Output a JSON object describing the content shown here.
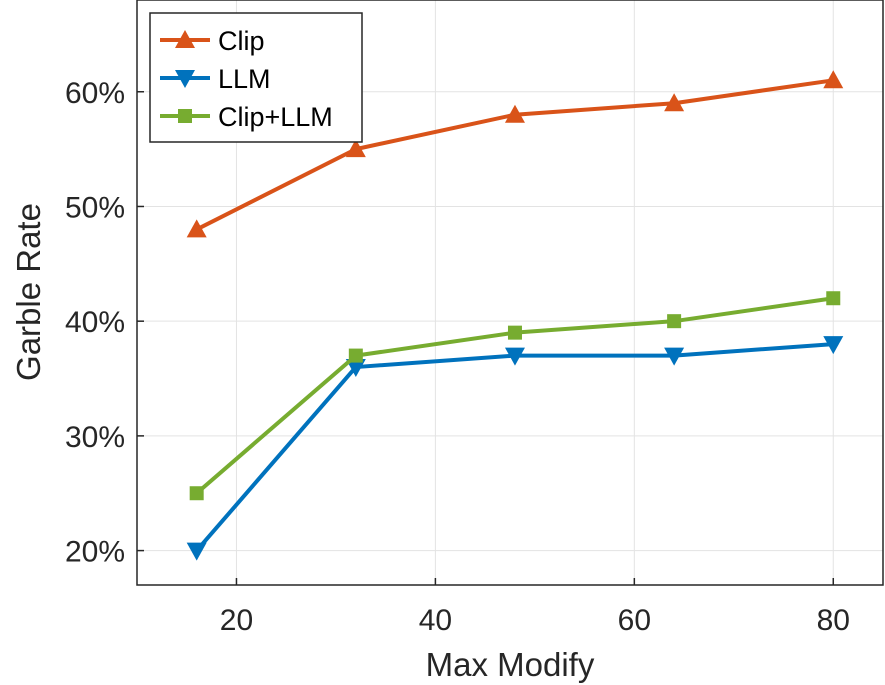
{
  "chart_data": {
    "type": "line",
    "xlabel": "Max Modify",
    "ylabel": "Garble Rate",
    "x": [
      16,
      32,
      48,
      64,
      80
    ],
    "xlim": [
      10,
      85
    ],
    "ylim": [
      0.17,
      0.68
    ],
    "xticks": [
      20,
      40,
      60,
      80
    ],
    "yticks": [
      0.2,
      0.3,
      0.4,
      0.5,
      0.6
    ],
    "ytick_labels": [
      "20%",
      "30%",
      "40%",
      "50%",
      "60%"
    ],
    "grid": true,
    "legend_position": "top-left",
    "series": [
      {
        "name": "Clip",
        "values": [
          0.48,
          0.55,
          0.58,
          0.59,
          0.61
        ],
        "color": "#D95319",
        "marker": "triangle-up"
      },
      {
        "name": "LLM",
        "values": [
          0.2,
          0.36,
          0.37,
          0.37,
          0.38
        ],
        "color": "#0072BD",
        "marker": "triangle-down"
      },
      {
        "name": "Clip+LLM",
        "values": [
          0.25,
          0.37,
          0.39,
          0.4,
          0.42
        ],
        "color": "#77AC30",
        "marker": "square"
      }
    ]
  }
}
